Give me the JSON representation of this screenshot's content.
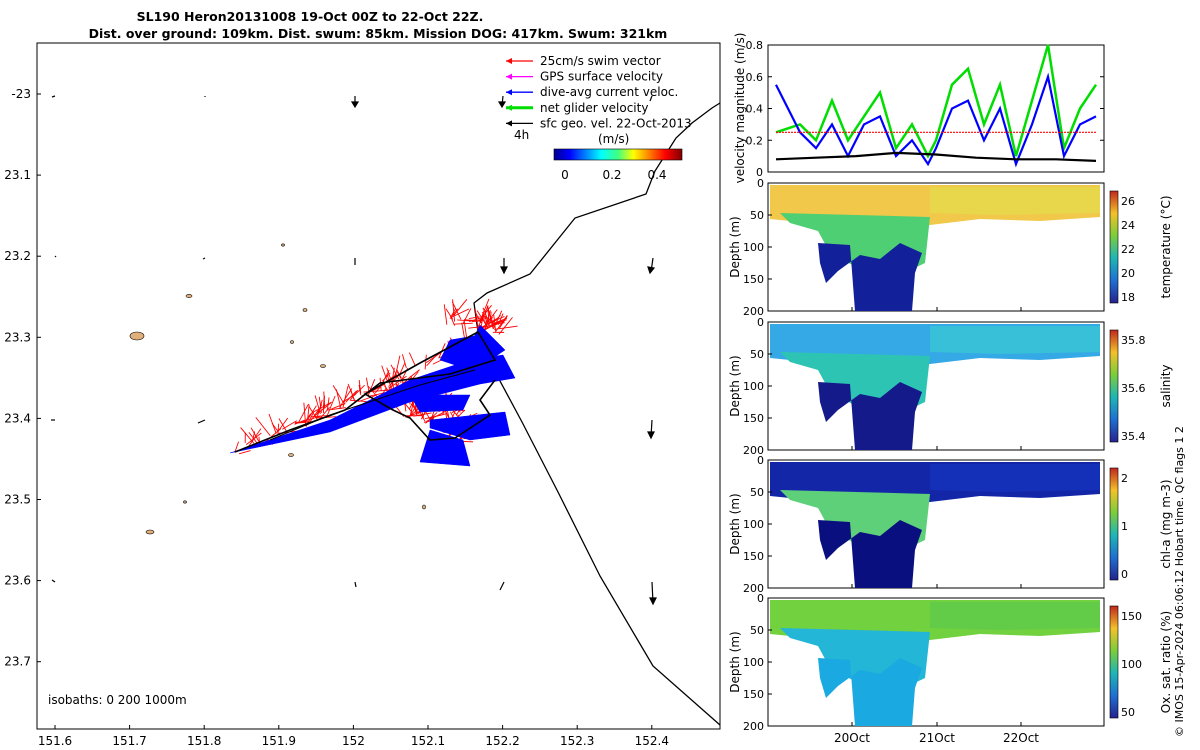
{
  "title": {
    "line1": "SL190 Heron20131008 19-Oct 00Z to 22-Oct 22Z.",
    "line2": "Dist. over ground: 109km. Dist. swum: 85km. Mission DOG: 417km. Swum: 321km"
  },
  "map": {
    "x_ticks": [
      "151.6",
      "151.7",
      "151.8",
      "151.9",
      "152",
      "152.1",
      "152.2",
      "152.3",
      "152.4"
    ],
    "y_ticks": [
      "-23",
      "23.1",
      "23.2",
      "23.3",
      "23.4",
      "23.5",
      "23.6",
      "23.7"
    ],
    "legend": [
      {
        "label": "25cm/s swim vector",
        "color": "#ff0000"
      },
      {
        "label": "GPS surface velocity",
        "color": "#ff00ff"
      },
      {
        "label": "dive-avg current veloc.",
        "color": "#0000ff"
      },
      {
        "label": "net glider velocity",
        "color": "#00dd00"
      },
      {
        "label": "sfc geo. vel. 22-Oct-2013",
        "color": "#000000"
      }
    ],
    "time_label": "4h",
    "colorbar_title": "(m/s)",
    "colorbar_ticks": [
      "0",
      "0.2",
      "0.4"
    ],
    "isobath_note": "isobaths: 0   200  1000m"
  },
  "panels": {
    "time_ticks": [
      "20Oct",
      "21Oct",
      "22Oct"
    ],
    "velocity": {
      "ylabel": "velocity magnitude (m/s)",
      "yticks": [
        "0",
        "0.2",
        "0.4",
        "0.6",
        "0.8"
      ]
    },
    "temperature": {
      "ylabel": "Depth (m)",
      "cbar_label": "temperature (°C)",
      "cbar_ticks": [
        "26",
        "24",
        "22",
        "20",
        "18"
      ],
      "yticks": [
        "0",
        "50",
        "100",
        "150",
        "200"
      ]
    },
    "salinity": {
      "ylabel": "Depth (m)",
      "cbar_label": "salinity",
      "cbar_ticks": [
        "35.8",
        "35.6",
        "35.4"
      ],
      "yticks": [
        "0",
        "50",
        "100",
        "150",
        "200"
      ]
    },
    "chla": {
      "ylabel": "Depth (m)",
      "cbar_label": "chl-a (mg m-3)",
      "cbar_ticks": [
        "2",
        "1",
        "0"
      ],
      "yticks": [
        "0",
        "50",
        "100",
        "150",
        "200"
      ]
    },
    "oxygen": {
      "ylabel": "Depth (m)",
      "cbar_label": "Ox. sat. ratio (%)",
      "cbar_ticks": [
        "150",
        "100",
        "50"
      ],
      "yticks": [
        "0",
        "50",
        "100",
        "150",
        "200"
      ]
    }
  },
  "side_note": "© IMOS 15-Apr-2024 06:06:12 Hobart time. QC flags 1  2",
  "chart_data": [
    {
      "type": "line",
      "title": "velocity magnitude",
      "ylabel": "velocity magnitude (m/s)",
      "ylim": [
        0,
        0.8
      ],
      "x_unit": "days since 19-Oct 00Z (approx)",
      "series": [
        {
          "name": "net glider velocity",
          "color": "#00dd00",
          "x": [
            0.0,
            0.3,
            0.5,
            0.7,
            0.9,
            1.1,
            1.3,
            1.5,
            1.7,
            1.9,
            2.0,
            2.2,
            2.4,
            2.6,
            2.8,
            3.0,
            3.2,
            3.4,
            3.6,
            3.8,
            4.0
          ],
          "values": [
            0.25,
            0.3,
            0.2,
            0.45,
            0.2,
            0.35,
            0.5,
            0.15,
            0.3,
            0.1,
            0.2,
            0.55,
            0.65,
            0.3,
            0.55,
            0.1,
            0.45,
            0.8,
            0.15,
            0.4,
            0.55
          ]
        },
        {
          "name": "dive-avg current veloc.",
          "color": "#0000ff",
          "x": [
            0.0,
            0.3,
            0.5,
            0.7,
            0.9,
            1.1,
            1.3,
            1.5,
            1.7,
            1.9,
            2.0,
            2.2,
            2.4,
            2.6,
            2.8,
            3.0,
            3.2,
            3.4,
            3.6,
            3.8,
            4.0
          ],
          "values": [
            0.55,
            0.25,
            0.15,
            0.3,
            0.1,
            0.3,
            0.35,
            0.1,
            0.2,
            0.05,
            0.15,
            0.4,
            0.45,
            0.2,
            0.4,
            0.05,
            0.3,
            0.6,
            0.1,
            0.3,
            0.35
          ]
        },
        {
          "name": "25cm/s swim vector",
          "color": "#ff0000",
          "x": [
            0,
            4
          ],
          "values": [
            0.25,
            0.25
          ]
        },
        {
          "name": "sfc geo. vel. 22-Oct-2013",
          "color": "#000000",
          "x": [
            0.0,
            0.5,
            1.0,
            1.5,
            2.0,
            2.5,
            3.0,
            3.5,
            4.0
          ],
          "values": [
            0.08,
            0.09,
            0.1,
            0.12,
            0.11,
            0.09,
            0.08,
            0.08,
            0.07
          ]
        }
      ]
    }
  ]
}
